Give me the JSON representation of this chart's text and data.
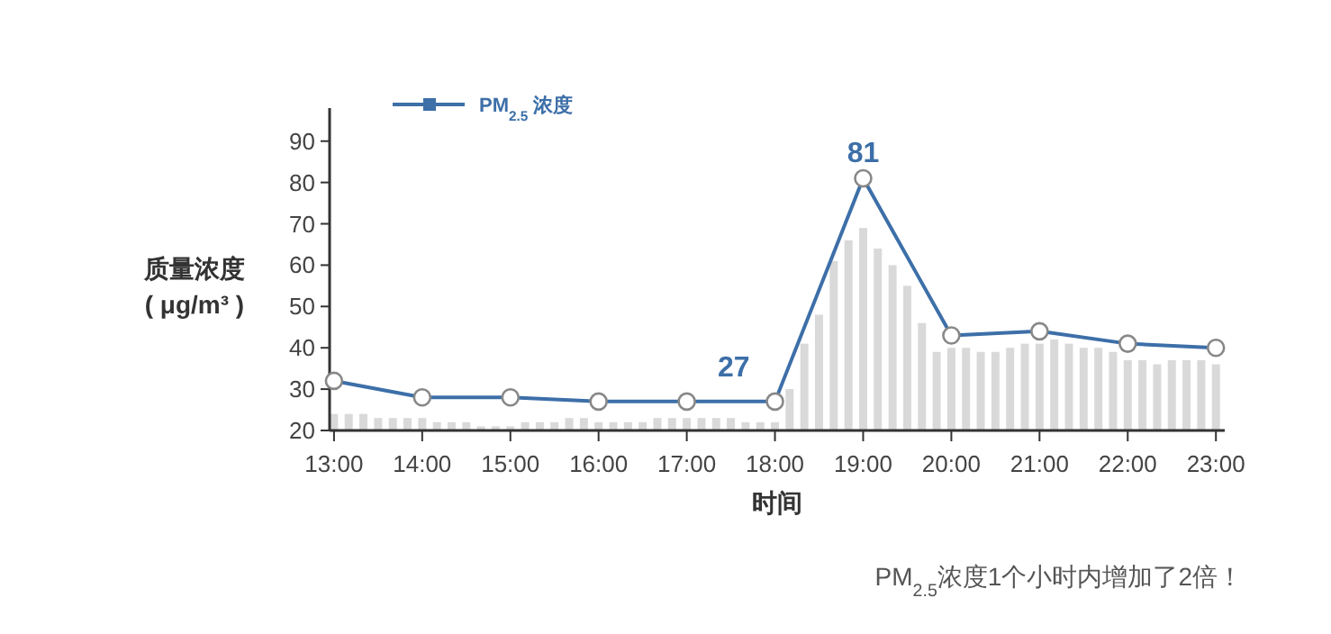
{
  "chart_data": {
    "type": "line",
    "x": [
      13,
      14,
      15,
      16,
      17,
      18,
      19,
      20,
      21,
      22,
      23
    ],
    "series": [
      {
        "type": "bar",
        "color": "#d9d9d9",
        "x": [
          13,
          13.1667,
          13.3333,
          13.5,
          13.6667,
          13.8333,
          14,
          14.1667,
          14.3333,
          14.5,
          14.6667,
          14.8333,
          15,
          15.1667,
          15.3333,
          15.5,
          15.6667,
          15.8333,
          16,
          16.1667,
          16.3333,
          16.5,
          16.6667,
          16.8333,
          17,
          17.1667,
          17.3333,
          17.5,
          17.6667,
          17.8333,
          18,
          18.1667,
          18.3333,
          18.5,
          18.6667,
          18.8333,
          19,
          19.1667,
          19.3333,
          19.5,
          19.6667,
          19.8333,
          20,
          20.1667,
          20.3333,
          20.5,
          20.6667,
          20.8333,
          21,
          21.1667,
          21.3333,
          21.5,
          21.6667,
          21.8333,
          22,
          22.1667,
          22.3333,
          22.5,
          22.6667,
          22.8333,
          23
        ],
        "values": [
          24,
          24,
          24,
          23,
          23,
          23,
          23,
          22,
          22,
          22,
          21,
          21,
          21,
          22,
          22,
          22,
          23,
          23,
          22,
          22,
          22,
          22,
          23,
          23,
          23,
          23,
          23,
          23,
          22,
          22,
          22,
          30,
          41,
          48,
          61,
          66,
          69,
          64,
          60,
          55,
          46,
          39,
          40,
          40,
          39,
          39,
          40,
          41,
          41,
          42,
          41,
          40,
          40,
          39,
          37,
          37,
          36,
          37,
          37,
          37,
          36
        ]
      },
      {
        "name": "PM$_{2.5}$ 浓度",
        "color": "#3d6fa8",
        "values": [
          32,
          28,
          28,
          27,
          27,
          27,
          81,
          43,
          44,
          41,
          40
        ],
        "value_labels": [
          null,
          null,
          null,
          null,
          null,
          "27",
          "81",
          null,
          null,
          null,
          null
        ]
      }
    ],
    "xlim": [
      12.95,
      23.1
    ],
    "xticks": [
      {
        "value": 13,
        "label": "13:00"
      },
      {
        "value": 14,
        "label": "14:00"
      },
      {
        "value": 15,
        "label": "15:00"
      },
      {
        "value": 16,
        "label": "16:00"
      },
      {
        "value": 17,
        "label": "17:00"
      },
      {
        "value": 18,
        "label": "18:00"
      },
      {
        "value": 19,
        "label": "19:00"
      },
      {
        "value": 20,
        "label": "20:00"
      },
      {
        "value": 21,
        "label": "21:00"
      },
      {
        "value": 22,
        "label": "22:00"
      },
      {
        "value": 23,
        "label": "23:00"
      }
    ],
    "ylim": [
      20,
      98
    ],
    "yticks": [
      20,
      30,
      40,
      50,
      60,
      70,
      80,
      90
    ],
    "xlabel": "时间",
    "ylabel": "质量浓度\n( μg/m³ )",
    "annotations": [
      "PM$_{2.5}$浓度1个小时内增加了2倍！"
    ],
    "legend": "top left",
    "marker": "circle",
    "line_style": "solid",
    "grid": false
  }
}
